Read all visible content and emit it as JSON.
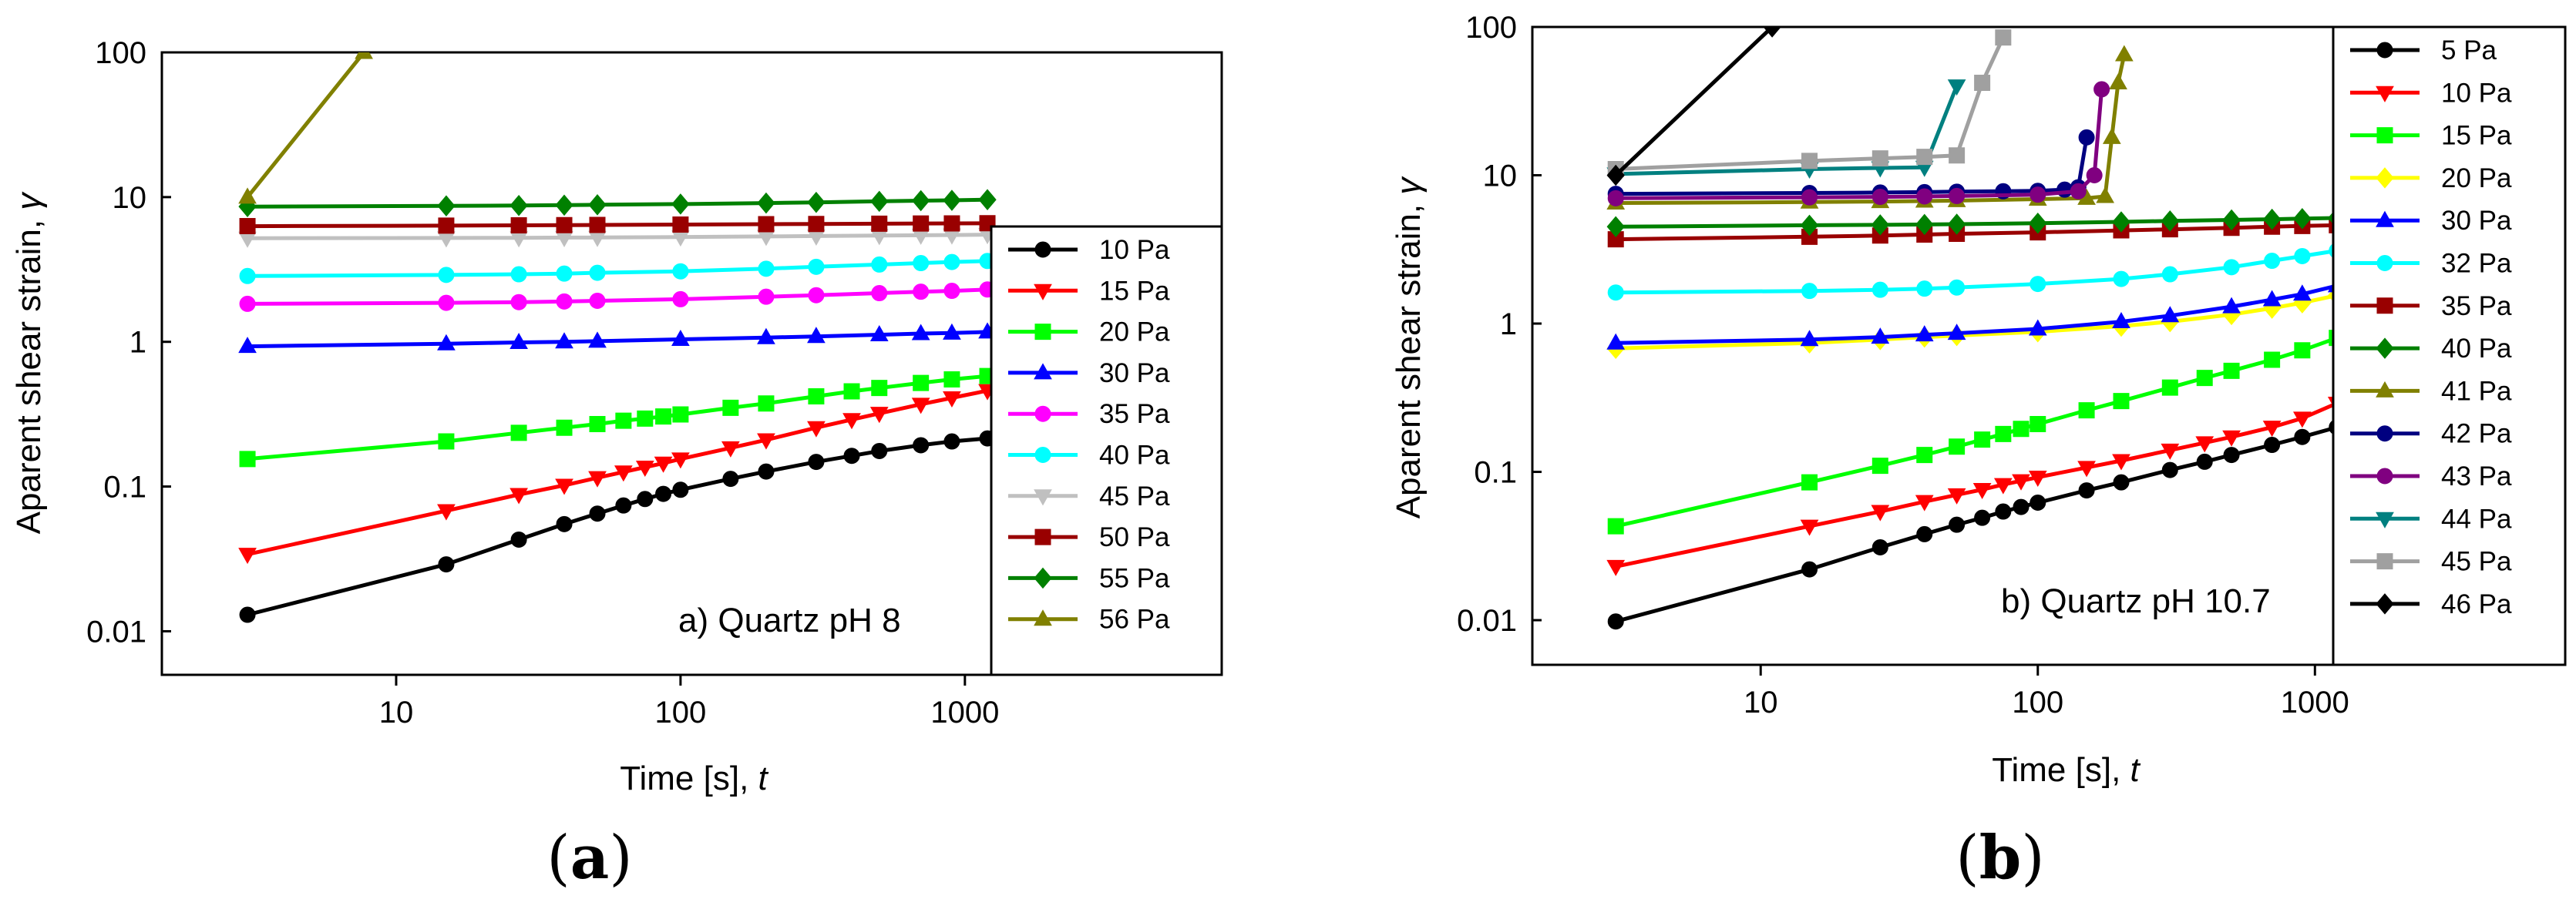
{
  "chart_data": [
    {
      "type": "line",
      "panel_label_letter": "a",
      "annotation": "a) Quartz pH 8",
      "xlabel_main": "Time [s], ",
      "xlabel_var": "t",
      "ylabel_main": "Aparent shear strain, ",
      "ylabel_var": "γ",
      "x_scale": "log",
      "y_scale": "log",
      "xlim": [
        1.5,
        8000
      ],
      "ylim": [
        0.005,
        100
      ],
      "x_ticks": [
        {
          "value": 10,
          "label": "10"
        },
        {
          "value": 100,
          "label": "100"
        },
        {
          "value": 1000,
          "label": "1000"
        }
      ],
      "y_ticks": [
        {
          "value": 0.01,
          "label": "0.01"
        },
        {
          "value": 0.1,
          "label": "0.1"
        },
        {
          "value": 1,
          "label": "1"
        },
        {
          "value": 10,
          "label": "10"
        },
        {
          "value": 100,
          "label": "100"
        }
      ],
      "legend_position": "right",
      "series": [
        {
          "name": "10 Pa",
          "color": "#000000",
          "marker": "circle",
          "x": [
            3,
            15,
            27,
            39,
            51,
            63,
            75,
            87,
            100,
            150,
            200,
            300,
            400,
            500,
            700,
            900,
            1200
          ],
          "y": [
            0.013,
            0.029,
            0.043,
            0.055,
            0.065,
            0.074,
            0.082,
            0.089,
            0.095,
            0.113,
            0.127,
            0.148,
            0.163,
            0.176,
            0.193,
            0.205,
            0.215
          ]
        },
        {
          "name": "15 Pa",
          "color": "#ff0000",
          "marker": "triangle-down",
          "x": [
            3,
            15,
            27,
            39,
            51,
            63,
            75,
            87,
            100,
            150,
            200,
            300,
            400,
            500,
            700,
            900,
            1200
          ],
          "y": [
            0.034,
            0.068,
            0.088,
            0.102,
            0.115,
            0.126,
            0.136,
            0.145,
            0.155,
            0.185,
            0.21,
            0.255,
            0.29,
            0.32,
            0.37,
            0.41,
            0.46
          ]
        },
        {
          "name": "20 Pa",
          "color": "#00ff00",
          "marker": "square",
          "x": [
            3,
            15,
            27,
            39,
            51,
            63,
            75,
            87,
            100,
            150,
            200,
            300,
            400,
            500,
            700,
            900,
            1200
          ],
          "y": [
            0.155,
            0.205,
            0.235,
            0.255,
            0.27,
            0.285,
            0.295,
            0.305,
            0.315,
            0.35,
            0.375,
            0.42,
            0.455,
            0.48,
            0.52,
            0.55,
            0.58
          ]
        },
        {
          "name": "30 Pa",
          "color": "#0000ff",
          "marker": "triangle-up",
          "x": [
            3,
            15,
            27,
            39,
            51,
            100,
            200,
            300,
            500,
            700,
            900,
            1200
          ],
          "y": [
            0.93,
            0.97,
            0.99,
            1.0,
            1.01,
            1.04,
            1.07,
            1.09,
            1.12,
            1.14,
            1.15,
            1.17
          ]
        },
        {
          "name": "35 Pa",
          "color": "#ff00ff",
          "marker": "circle",
          "x": [
            3,
            15,
            27,
            39,
            51,
            100,
            200,
            300,
            500,
            700,
            900,
            1200
          ],
          "y": [
            1.83,
            1.86,
            1.88,
            1.9,
            1.92,
            1.97,
            2.05,
            2.1,
            2.17,
            2.22,
            2.25,
            2.3
          ]
        },
        {
          "name": "40 Pa",
          "color": "#00ffff",
          "marker": "circle",
          "x": [
            3,
            15,
            27,
            39,
            51,
            100,
            200,
            300,
            500,
            700,
            900,
            1200
          ],
          "y": [
            2.85,
            2.9,
            2.93,
            2.96,
            3.0,
            3.07,
            3.2,
            3.3,
            3.42,
            3.5,
            3.56,
            3.62
          ]
        },
        {
          "name": "45 Pa",
          "color": "#c0c0c0",
          "marker": "triangle-down",
          "x": [
            3,
            15,
            27,
            39,
            51,
            100,
            200,
            300,
            500,
            700,
            900,
            1200
          ],
          "y": [
            5.2,
            5.22,
            5.23,
            5.25,
            5.26,
            5.3,
            5.35,
            5.38,
            5.42,
            5.45,
            5.47,
            5.5
          ]
        },
        {
          "name": "50 Pa",
          "color": "#990000",
          "marker": "square",
          "x": [
            3,
            15,
            27,
            39,
            51,
            100,
            200,
            300,
            500,
            700,
            900,
            1200
          ],
          "y": [
            6.3,
            6.35,
            6.38,
            6.4,
            6.42,
            6.46,
            6.5,
            6.52,
            6.55,
            6.57,
            6.58,
            6.6
          ]
        },
        {
          "name": "55 Pa",
          "color": "#008000",
          "marker": "diamond",
          "x": [
            3,
            15,
            27,
            39,
            51,
            100,
            200,
            300,
            500,
            700,
            900,
            1200
          ],
          "y": [
            8.6,
            8.7,
            8.75,
            8.8,
            8.85,
            8.95,
            9.1,
            9.2,
            9.35,
            9.45,
            9.5,
            9.6
          ]
        },
        {
          "name": "56 Pa",
          "color": "#808000",
          "marker": "triangle-up",
          "x": [
            3,
            7.7
          ],
          "y": [
            10,
            100
          ]
        }
      ]
    },
    {
      "type": "line",
      "panel_label_letter": "b",
      "annotation": "b) Quartz pH 10.7",
      "xlabel_main": "Time [s], ",
      "xlabel_var": "t",
      "ylabel_main": "Aparent shear strain, ",
      "ylabel_var": "γ",
      "x_scale": "log",
      "y_scale": "log",
      "xlim": [
        1.5,
        8000
      ],
      "ylim": [
        0.005,
        100
      ],
      "x_ticks": [
        {
          "value": 10,
          "label": "10"
        },
        {
          "value": 100,
          "label": "100"
        },
        {
          "value": 1000,
          "label": "1000"
        }
      ],
      "y_ticks": [
        {
          "value": 0.01,
          "label": "0.01"
        },
        {
          "value": 0.1,
          "label": "0.1"
        },
        {
          "value": 1,
          "label": "1"
        },
        {
          "value": 10,
          "label": "10"
        },
        {
          "value": 100,
          "label": "100"
        }
      ],
      "legend_position": "right",
      "series": [
        {
          "name": "5 Pa",
          "color": "#000000",
          "marker": "circle",
          "x": [
            3,
            15,
            27,
            39,
            51,
            63,
            75,
            87,
            100,
            150,
            200,
            300,
            400,
            500,
            700,
            900,
            1200
          ],
          "y": [
            0.0098,
            0.022,
            0.031,
            0.038,
            0.044,
            0.049,
            0.054,
            0.058,
            0.062,
            0.075,
            0.085,
            0.103,
            0.117,
            0.13,
            0.152,
            0.172,
            0.2
          ]
        },
        {
          "name": "10 Pa",
          "color": "#ff0000",
          "marker": "triangle-down",
          "x": [
            3,
            15,
            27,
            39,
            51,
            63,
            75,
            87,
            100,
            150,
            200,
            300,
            400,
            500,
            700,
            900,
            1200
          ],
          "y": [
            0.023,
            0.043,
            0.054,
            0.063,
            0.07,
            0.076,
            0.082,
            0.087,
            0.092,
            0.107,
            0.119,
            0.14,
            0.157,
            0.172,
            0.2,
            0.23,
            0.29
          ]
        },
        {
          "name": "15 Pa",
          "color": "#00ff00",
          "marker": "square",
          "x": [
            3,
            15,
            27,
            39,
            51,
            63,
            75,
            87,
            100,
            150,
            200,
            300,
            400,
            500,
            700,
            900,
            1200
          ],
          "y": [
            0.043,
            0.085,
            0.11,
            0.13,
            0.148,
            0.165,
            0.18,
            0.195,
            0.21,
            0.26,
            0.3,
            0.37,
            0.43,
            0.48,
            0.57,
            0.66,
            0.8
          ]
        },
        {
          "name": "20 Pa",
          "color": "#ffff00",
          "marker": "diamond",
          "x": [
            3,
            15,
            27,
            39,
            51,
            100,
            200,
            300,
            500,
            700,
            900,
            1200
          ],
          "y": [
            0.68,
            0.74,
            0.78,
            0.81,
            0.83,
            0.88,
            0.96,
            1.03,
            1.15,
            1.27,
            1.38,
            1.55
          ]
        },
        {
          "name": "30 Pa",
          "color": "#0000ff",
          "marker": "triangle-up",
          "x": [
            3,
            15,
            27,
            39,
            51,
            100,
            200,
            300,
            500,
            700,
            900,
            1200
          ],
          "y": [
            0.74,
            0.78,
            0.81,
            0.84,
            0.86,
            0.92,
            1.03,
            1.13,
            1.3,
            1.45,
            1.58,
            1.8
          ]
        },
        {
          "name": "32 Pa",
          "color": "#00ffff",
          "marker": "circle",
          "x": [
            3,
            15,
            27,
            39,
            51,
            100,
            200,
            300,
            500,
            700,
            900,
            1200
          ],
          "y": [
            1.62,
            1.66,
            1.69,
            1.72,
            1.75,
            1.85,
            2.0,
            2.15,
            2.4,
            2.65,
            2.85,
            3.1
          ]
        },
        {
          "name": "35 Pa",
          "color": "#990000",
          "marker": "square",
          "x": [
            3,
            15,
            27,
            39,
            51,
            100,
            200,
            300,
            500,
            700,
            900,
            1200
          ],
          "y": [
            3.7,
            3.85,
            3.92,
            3.98,
            4.03,
            4.12,
            4.25,
            4.32,
            4.42,
            4.5,
            4.55,
            4.6
          ]
        },
        {
          "name": "40 Pa",
          "color": "#008000",
          "marker": "diamond",
          "x": [
            3,
            15,
            27,
            39,
            51,
            100,
            200,
            300,
            500,
            700,
            900,
            1200
          ],
          "y": [
            4.5,
            4.6,
            4.63,
            4.66,
            4.68,
            4.75,
            4.85,
            4.92,
            5.0,
            5.05,
            5.1,
            5.15
          ]
        },
        {
          "name": "41 Pa",
          "color": "#808000",
          "marker": "triangle-up",
          "x": [
            3,
            15,
            27,
            39,
            51,
            100,
            150,
            175,
            185,
            195,
            205
          ],
          "y": [
            6.5,
            6.6,
            6.65,
            6.7,
            6.75,
            6.9,
            7.0,
            7.2,
            18,
            42,
            65
          ]
        },
        {
          "name": "42 Pa",
          "color": "#000080",
          "marker": "circle",
          "x": [
            3,
            15,
            27,
            39,
            51,
            75,
            100,
            125,
            140,
            150
          ],
          "y": [
            7.5,
            7.6,
            7.65,
            7.7,
            7.75,
            7.8,
            7.85,
            8.0,
            8.3,
            18
          ]
        },
        {
          "name": "43 Pa",
          "color": "#800080",
          "marker": "circle",
          "x": [
            3,
            15,
            27,
            39,
            51,
            100,
            140,
            160,
            170
          ],
          "y": [
            7.0,
            7.1,
            7.15,
            7.2,
            7.25,
            7.4,
            7.8,
            10,
            38
          ]
        },
        {
          "name": "44 Pa",
          "color": "#008080",
          "marker": "triangle-down",
          "x": [
            3,
            15,
            27,
            39,
            51
          ],
          "y": [
            10.2,
            11.0,
            11.2,
            11.3,
            40
          ]
        },
        {
          "name": "45 Pa",
          "color": "#a0a0a0",
          "marker": "square",
          "x": [
            3,
            15,
            27,
            39,
            51,
            63,
            75
          ],
          "y": [
            11.0,
            12.5,
            13.0,
            13.3,
            13.6,
            42,
            85
          ]
        },
        {
          "name": "46 Pa",
          "color": "#000000",
          "marker": "diamond",
          "x": [
            3,
            11
          ],
          "y": [
            10,
            100
          ]
        }
      ]
    }
  ]
}
